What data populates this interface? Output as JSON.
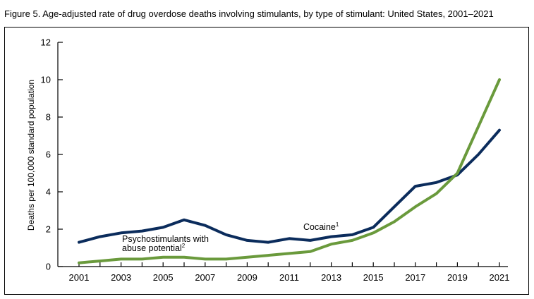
{
  "title": "Figure 5. Age-adjusted rate of drug overdose deaths involving stimulants, by type of stimulant: United States, 2001–2021",
  "chart_data": {
    "type": "line",
    "ylabel": "Deaths per 100,000 standard population",
    "ylim": [
      0,
      12
    ],
    "yticks": [
      0,
      2,
      4,
      6,
      8,
      10,
      12
    ],
    "xlim": [
      2001,
      2021
    ],
    "xticks": [
      2001,
      2003,
      2005,
      2007,
      2009,
      2011,
      2013,
      2015,
      2017,
      2019,
      2021
    ],
    "x": [
      2001,
      2002,
      2003,
      2004,
      2005,
      2006,
      2007,
      2008,
      2009,
      2010,
      2011,
      2012,
      2013,
      2014,
      2015,
      2016,
      2017,
      2018,
      2019,
      2020,
      2021
    ],
    "series": [
      {
        "name": "Cocaine",
        "superscript": "1",
        "color": "#0b2c5c",
        "values": [
          1.3,
          1.6,
          1.8,
          1.9,
          2.1,
          2.5,
          2.2,
          1.7,
          1.4,
          1.3,
          1.5,
          1.4,
          1.6,
          1.7,
          2.1,
          3.2,
          4.3,
          4.5,
          4.9,
          6.0,
          7.3
        ]
      },
      {
        "name": "Psychostimulants with abuse potential",
        "name_lines": [
          "Psychostimulants with",
          "abuse potential"
        ],
        "superscript": "2",
        "color": "#6a9a3c",
        "values": [
          0.2,
          0.3,
          0.4,
          0.4,
          0.5,
          0.5,
          0.4,
          0.4,
          0.5,
          0.6,
          0.7,
          0.8,
          1.2,
          1.4,
          1.8,
          2.4,
          3.2,
          3.9,
          5.0,
          7.5,
          10.0
        ]
      }
    ],
    "grid": false,
    "legend": "inline labels"
  }
}
